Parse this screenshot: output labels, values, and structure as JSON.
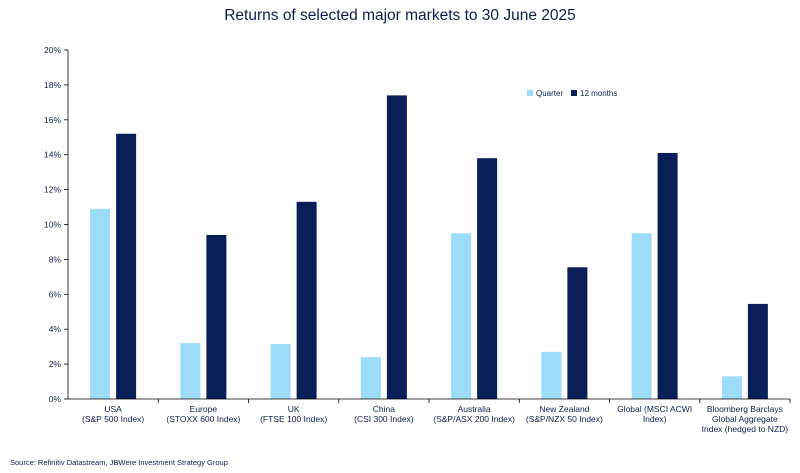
{
  "chart_data": {
    "type": "bar",
    "title": "Returns of selected major markets to 30 June 2025",
    "categories": [
      [
        "USA",
        "(S&P 500 Index)"
      ],
      [
        "Europe",
        "(STOXX 600 Index)"
      ],
      [
        "UK",
        "(FTSE 100 Index)"
      ],
      [
        "China",
        "(CSI 300 Index)"
      ],
      [
        "Australia",
        "(S&P/ASX 200 Index)"
      ],
      [
        "New Zealand",
        "(S&P/NZX 50 Index)"
      ],
      [
        "Global (MSCI ACWI",
        "Index)"
      ],
      [
        "Bloomberg Barclays",
        "Global Aggregate",
        "Index (hedged to NZD)"
      ]
    ],
    "series": [
      {
        "name": "Quarter",
        "color": "#9ddcf8",
        "values": [
          10.9,
          3.2,
          3.15,
          2.4,
          9.5,
          2.7,
          9.5,
          1.3
        ]
      },
      {
        "name": "12 months",
        "color": "#0a1f57",
        "values": [
          15.2,
          9.4,
          11.3,
          17.4,
          13.8,
          7.55,
          14.1,
          5.45
        ]
      }
    ],
    "ylim": [
      0,
      20
    ],
    "yticks": [
      "0%",
      "2%",
      "4%",
      "6%",
      "8%",
      "10%",
      "12%",
      "14%",
      "16%",
      "18%",
      "20%"
    ],
    "legend_position": "top-right",
    "grid": false,
    "xlabel": "",
    "ylabel": ""
  },
  "source_note": "Source: Refinitiv Datastream, JBWere Investment Strategy Group"
}
